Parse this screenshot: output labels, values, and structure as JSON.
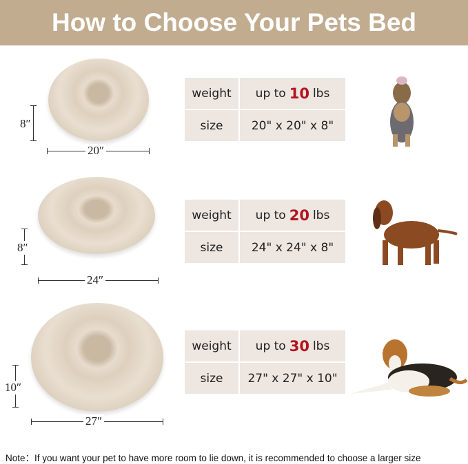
{
  "header": {
    "title": "How to Choose Your Pets Bed"
  },
  "sizes": [
    {
      "height": "8″",
      "width": "20″",
      "weight_label": "weight",
      "weight_prefix": "up to",
      "weight_value": "10",
      "weight_unit": "lbs",
      "size_label": "size",
      "size_value": "20\" x 20\" x 8\"",
      "dog": "yorkshire-terrier"
    },
    {
      "height": "8″",
      "width": "24″",
      "weight_label": "weight",
      "weight_prefix": "up to",
      "weight_value": "20",
      "weight_unit": "lbs",
      "size_label": "size",
      "size_value": "24\" x 24\" x 8\"",
      "dog": "dachshund"
    },
    {
      "height": "10″",
      "width": "27″",
      "weight_label": "weight",
      "weight_prefix": "up to",
      "weight_value": "30",
      "weight_unit": "lbs",
      "size_label": "size",
      "size_value": "27\" x 27\" x 10\"",
      "dog": "beagle"
    }
  ],
  "note": "Note：If you want your pet to have more room to lie down, it is recommended to choose a larger size",
  "colors": {
    "header": "#c1ac8f",
    "table_cell": "#ede6e1",
    "highlight": "#b3141c"
  }
}
